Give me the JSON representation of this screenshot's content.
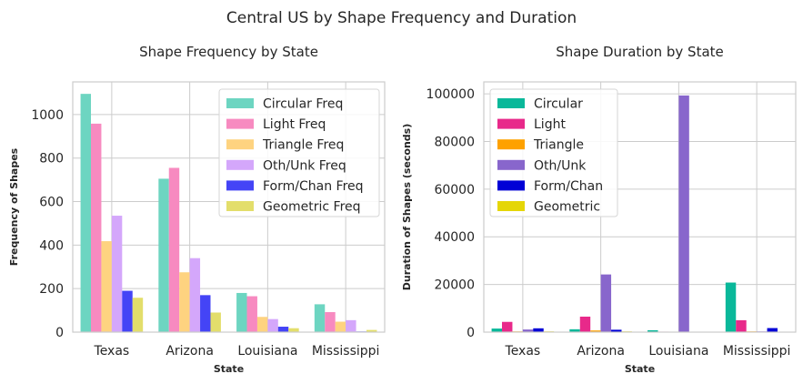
{
  "figure": {
    "title": "Central US by Shape Frequency and Duration"
  },
  "chart_data": [
    {
      "type": "bar",
      "title": "Shape Frequency by State",
      "xlabel": "State",
      "ylabel": "Frequency of Shapes",
      "categories": [
        "Texas",
        "Arizona",
        "Louisiana",
        "Mississippi"
      ],
      "ylim": [
        0,
        1150
      ],
      "yticks": [
        0,
        200,
        400,
        600,
        800,
        1000
      ],
      "grid": true,
      "legend_position": "top-right",
      "series": [
        {
          "name": "Circular Freq",
          "color": "#6dd5c1",
          "values": [
            1095,
            705,
            180,
            128
          ]
        },
        {
          "name": "Light Freq",
          "color": "#f78ac0",
          "values": [
            958,
            755,
            165,
            92
          ]
        },
        {
          "name": "Triangle Freq",
          "color": "#fed380",
          "values": [
            418,
            275,
            70,
            48
          ]
        },
        {
          "name": "Oth/Unk Freq",
          "color": "#d4a7fb",
          "values": [
            535,
            340,
            60,
            55
          ]
        },
        {
          "name": "Form/Chan Freq",
          "color": "#4444f6",
          "values": [
            190,
            170,
            25,
            3
          ]
        },
        {
          "name": "Geometric Freq",
          "color": "#e3de6b",
          "values": [
            158,
            90,
            18,
            10
          ]
        }
      ]
    },
    {
      "type": "bar",
      "title": "Shape Duration by State",
      "xlabel": "State",
      "ylabel": "Duration of Shapes (seconds)",
      "categories": [
        "Texas",
        "Arizona",
        "Louisiana",
        "Mississippi"
      ],
      "ylim": [
        0,
        105000
      ],
      "yticks": [
        0,
        20000,
        40000,
        60000,
        80000,
        100000
      ],
      "grid": true,
      "legend_position": "top-left",
      "series": [
        {
          "name": "Circular",
          "color": "#0ab89a",
          "values": [
            1500,
            1200,
            800,
            20800
          ]
        },
        {
          "name": "Light",
          "color": "#e8298a",
          "values": [
            4300,
            6500,
            200,
            5000
          ]
        },
        {
          "name": "Triangle",
          "color": "#fea100",
          "values": [
            300,
            700,
            100,
            300
          ]
        },
        {
          "name": "Oth/Unk",
          "color": "#8866cc",
          "values": [
            1100,
            24200,
            99300,
            300
          ]
        },
        {
          "name": "Form/Chan",
          "color": "#0000d6",
          "values": [
            1600,
            1000,
            100,
            1700
          ]
        },
        {
          "name": "Geometric",
          "color": "#e5d607",
          "values": [
            300,
            300,
            100,
            100
          ]
        }
      ]
    }
  ]
}
